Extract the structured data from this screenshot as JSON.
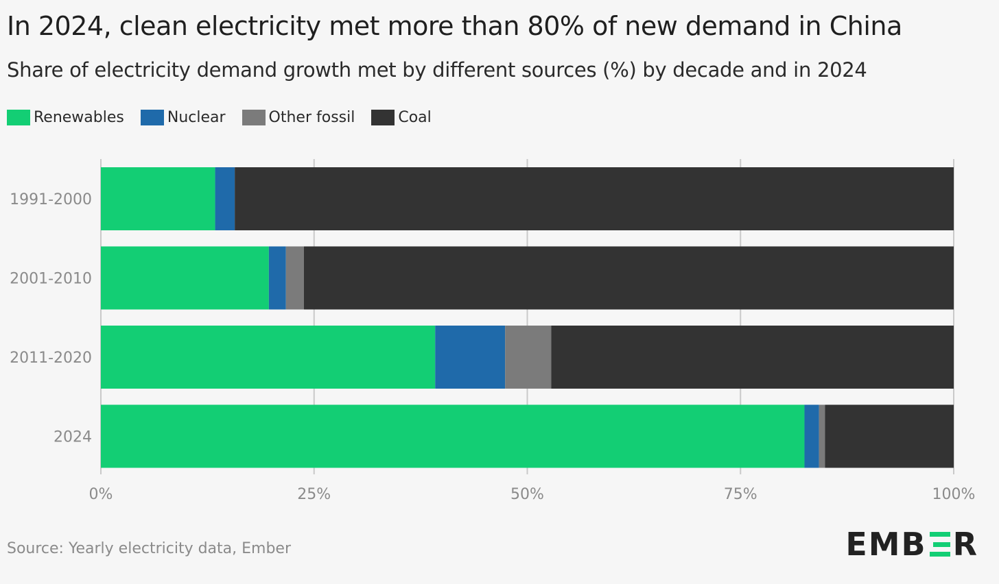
{
  "title": "In 2024, clean electricity met more than 80% of new demand in China",
  "subtitle": "Share of electricity demand growth met by different sources (%) by decade and in 2024",
  "legend": [
    {
      "label": "Renewables",
      "color": "#13ce74"
    },
    {
      "label": "Nuclear",
      "color": "#1f6aaa"
    },
    {
      "label": "Other fossil",
      "color": "#7b7b7b"
    },
    {
      "label": "Coal",
      "color": "#333333"
    }
  ],
  "source": "Source: Yearly electricity data, Ember",
  "logo": {
    "text_before": "EMB",
    "text_after": "R",
    "hidden_letter": "E",
    "accent": "#13ce74"
  },
  "chart_data": {
    "type": "bar",
    "orientation": "horizontal",
    "stacked": true,
    "title": "In 2024, clean electricity met more than 80% of new demand in China",
    "subtitle": "Share of electricity demand growth met by different sources (%) by decade and in 2024",
    "categories": [
      "1991-2000",
      "2001-2010",
      "2011-2020",
      "2024"
    ],
    "series": [
      {
        "name": "Renewables",
        "color": "#13ce74",
        "values": [
          13.4,
          19.7,
          39.2,
          82.5
        ]
      },
      {
        "name": "Nuclear",
        "color": "#1f6aaa",
        "values": [
          2.3,
          2.0,
          8.2,
          1.7
        ]
      },
      {
        "name": "Other fossil",
        "color": "#7b7b7b",
        "values": [
          0.0,
          2.1,
          5.4,
          0.7
        ]
      },
      {
        "name": "Coal",
        "color": "#333333",
        "values": [
          84.3,
          76.2,
          47.2,
          15.1
        ]
      }
    ],
    "xlim": [
      0,
      100
    ],
    "xticks": [
      0,
      25,
      50,
      75,
      100
    ],
    "xtick_labels": [
      "0%",
      "25%",
      "50%",
      "75%",
      "100%"
    ],
    "xlabel": "",
    "ylabel": "",
    "grid": "vertical",
    "legend_position": "top-left"
  }
}
